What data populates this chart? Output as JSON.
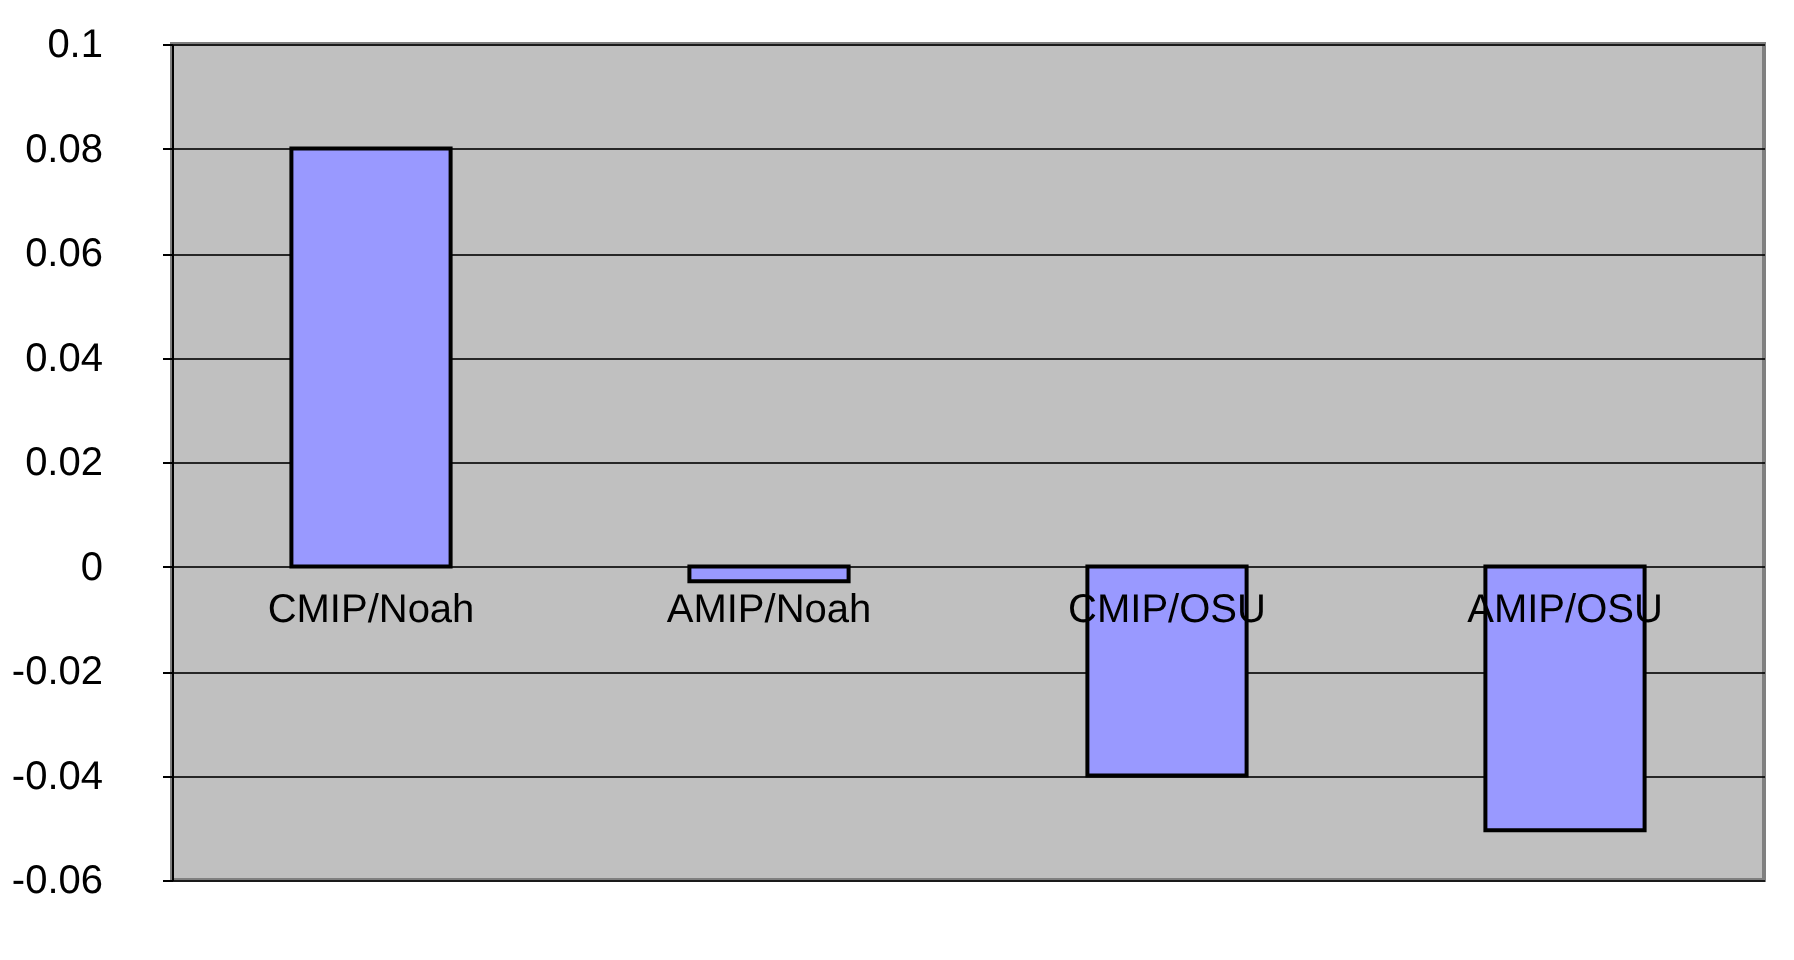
{
  "chart_data": {
    "type": "bar",
    "categories": [
      "CMIP/Noah",
      "AMIP/Noah",
      "CMIP/OSU",
      "AMIP/OSU"
    ],
    "values": [
      0.08,
      -0.0028,
      -0.04,
      -0.0505
    ],
    "color": "#9999ff",
    "ylim": [
      -0.06,
      0.1
    ],
    "yticks": [
      -0.06,
      -0.04,
      -0.02,
      0,
      0.02,
      0.04,
      0.06,
      0.08,
      0.1
    ],
    "grid": "y"
  }
}
